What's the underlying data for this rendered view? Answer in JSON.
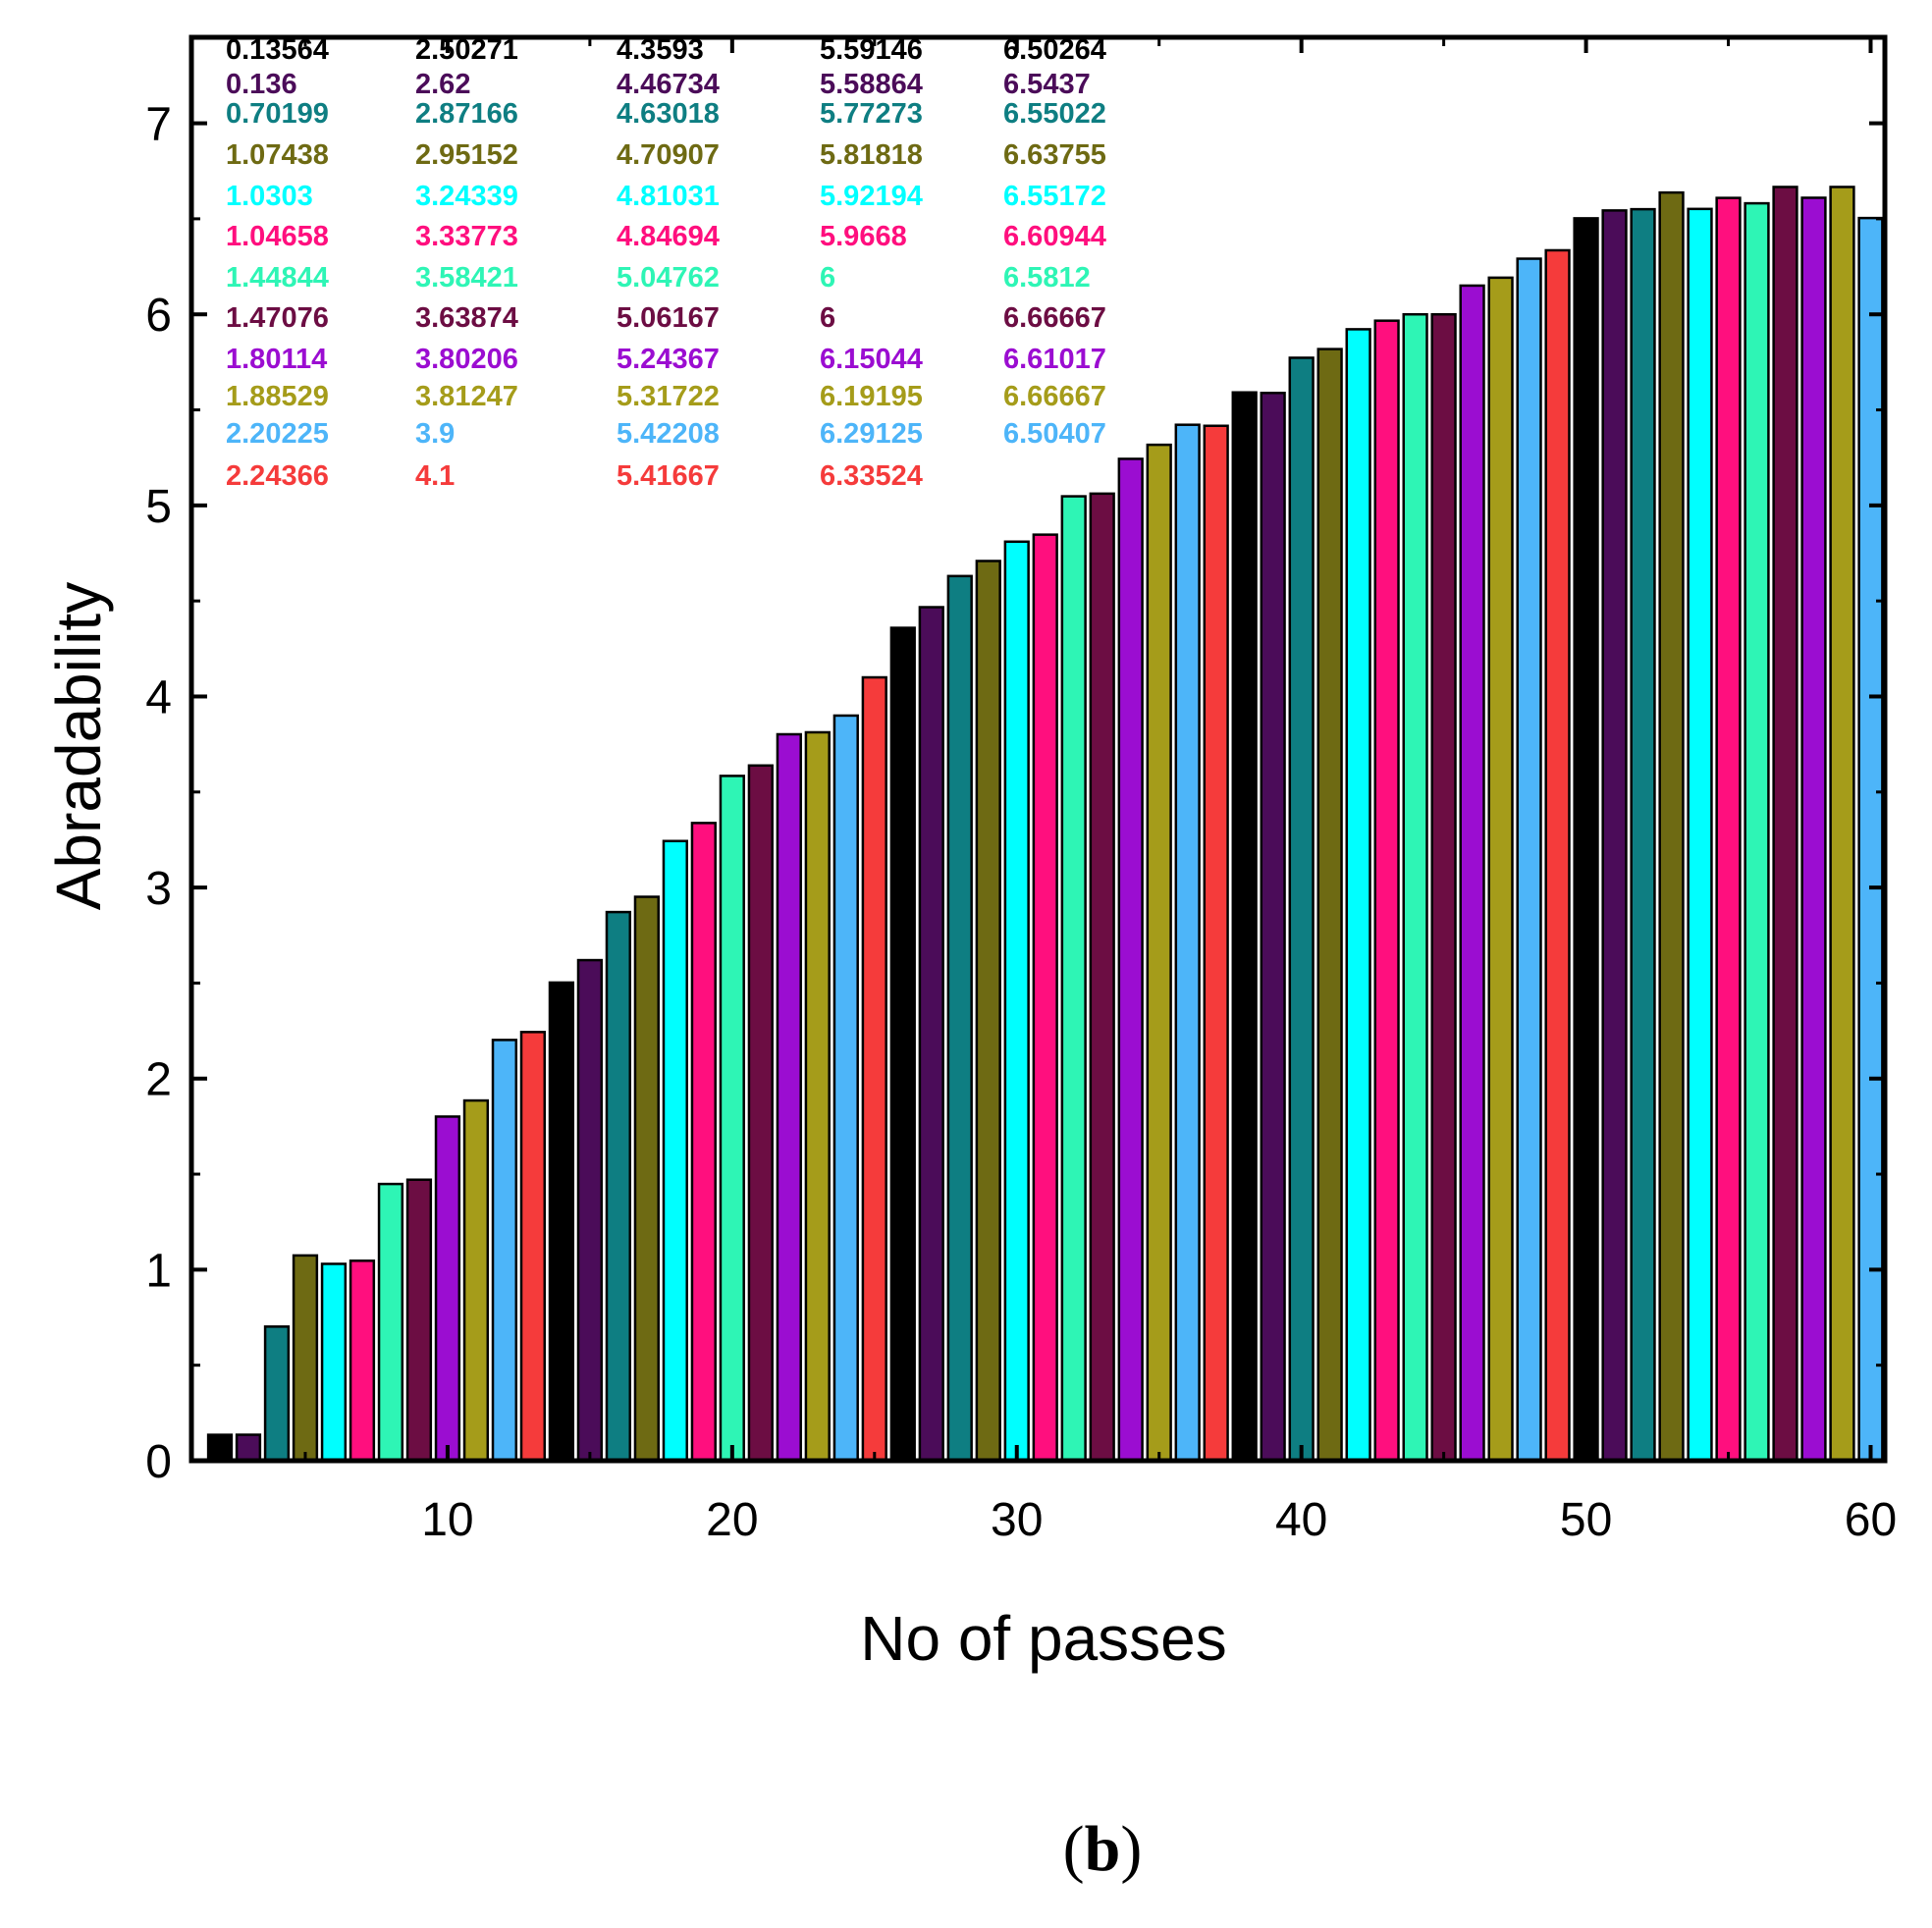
{
  "chart_data": {
    "type": "bar",
    "title": "",
    "xlabel": "No of passes",
    "ylabel": "Abradability",
    "caption_open": "(",
    "caption_letter": "b",
    "caption_close": ")",
    "xlim": [
      1,
      60.5
    ],
    "ylim": [
      0,
      7.45
    ],
    "xticks": [
      10,
      20,
      30,
      40,
      50,
      60
    ],
    "yticks": [
      0,
      1,
      2,
      3,
      4,
      5,
      6,
      7
    ],
    "x": [
      2,
      3,
      4,
      5,
      6,
      7,
      8,
      9,
      10,
      11,
      12,
      13,
      14,
      15,
      16,
      17,
      18,
      19,
      20,
      21,
      22,
      23,
      24,
      25,
      26,
      27,
      28,
      29,
      30,
      31,
      32,
      33,
      34,
      35,
      36,
      37,
      38,
      39,
      40,
      41,
      42,
      43,
      44,
      45,
      46,
      47,
      48,
      49,
      50,
      51,
      52,
      53,
      54,
      55,
      56,
      57,
      58,
      59,
      60
    ],
    "values": [
      0.13564,
      0.136,
      0.70199,
      1.07438,
      1.0303,
      1.04658,
      1.44844,
      1.47076,
      1.80114,
      1.88529,
      2.20225,
      2.24366,
      2.50271,
      2.62,
      2.87166,
      2.95152,
      3.24339,
      3.33773,
      3.58421,
      3.63874,
      3.80206,
      3.81247,
      3.9,
      4.1,
      4.3593,
      4.46734,
      4.63018,
      4.70907,
      4.81031,
      4.84694,
      5.04762,
      5.06167,
      5.24367,
      5.31722,
      5.42208,
      5.41667,
      5.59146,
      5.58864,
      5.77273,
      5.81818,
      5.92194,
      5.9668,
      6,
      6,
      6.15044,
      6.19195,
      6.29125,
      6.33524,
      6.50264,
      6.5437,
      6.55022,
      6.63755,
      6.55172,
      6.60944,
      6.5812,
      6.66667,
      6.61017,
      6.66667,
      6.50407
    ],
    "label_text": [
      "0.13564",
      "0.136",
      "0.70199",
      "1.07438",
      "1.0303",
      "1.04658",
      "1.44844",
      "1.47076",
      "1.80114",
      "1.88529",
      "2.20225",
      "2.24366",
      "2.50271",
      "2.62",
      "2.87166",
      "2.95152",
      "3.24339",
      "3.33773",
      "3.58421",
      "3.63874",
      "3.80206",
      "3.81247",
      "3.9",
      "4.1",
      "4.3593",
      "4.46734",
      "4.63018",
      "4.70907",
      "4.81031",
      "4.84694",
      "5.04762",
      "5.06167",
      "5.24367",
      "5.31722",
      "5.42208",
      "5.41667",
      "5.59146",
      "5.58864",
      "5.77273",
      "5.81818",
      "5.92194",
      "5.9668",
      "6",
      "6",
      "6.15044",
      "6.19195",
      "6.29125",
      "6.33524",
      "6.50264",
      "6.5437",
      "6.55022",
      "6.63755",
      "6.55172",
      "6.60944",
      "6.5812",
      "6.66667",
      "6.61017",
      "6.66667",
      "6.50407"
    ],
    "palette": [
      "#000000",
      "#4B0C59",
      "#0E7E82",
      "#6E6A13",
      "#00FFFF",
      "#FF0F7E",
      "#2EF5B5",
      "#6C0D43",
      "#9B0DD1",
      "#A59C1A",
      "#4DB5F9",
      "#F53B3B"
    ],
    "label_colors": [
      "#000000",
      "#4B0C59",
      "#0E7E82",
      "#6E6A13",
      "#00FFFF",
      "#FF0F7E",
      "#2EF5B5",
      "#6C0D43",
      "#9B0DD1",
      "#A59C1A",
      "#4DB5F9",
      "#F53B3B"
    ],
    "label_layout": "columns of 12 above bars, top-left"
  }
}
